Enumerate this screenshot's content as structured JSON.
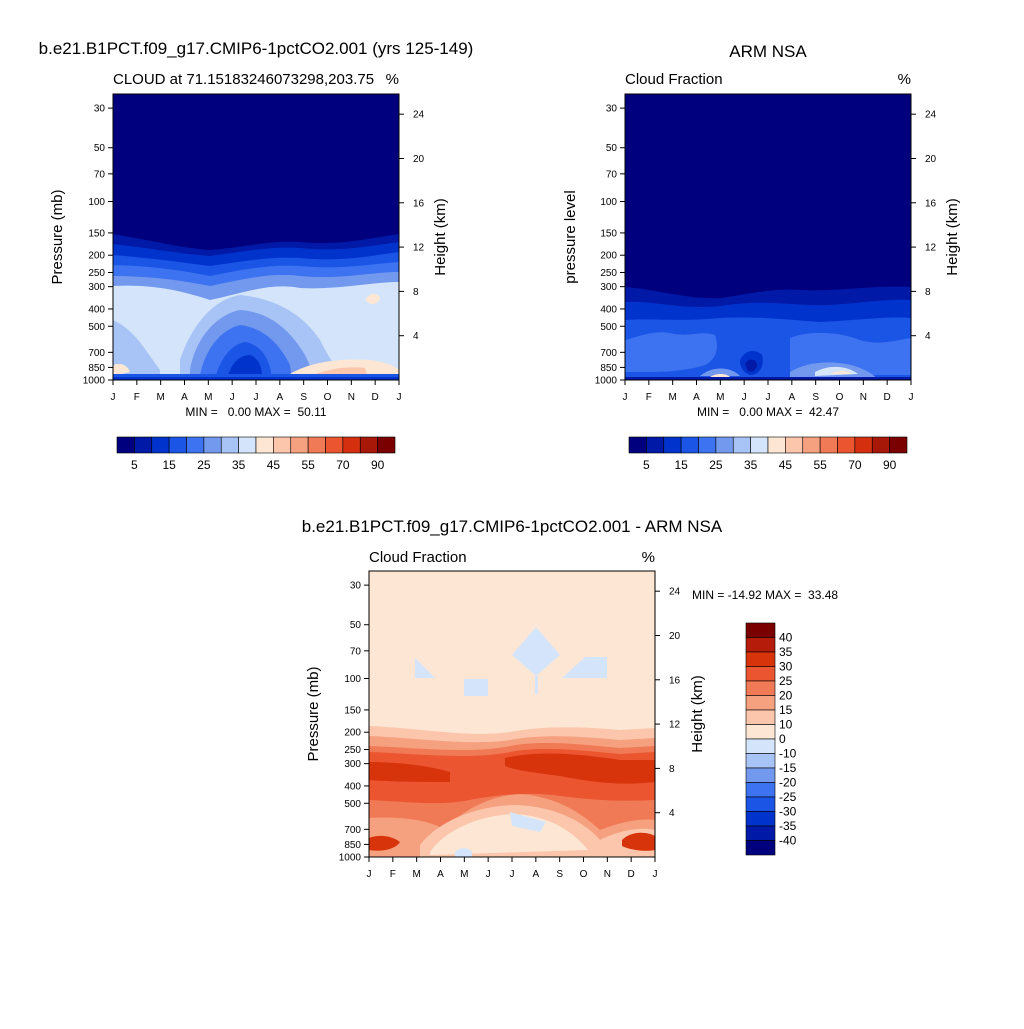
{
  "page": {
    "panels": [
      {
        "title": "b.e21.B1PCT.f09_g17.CMIP6-1pctCO2.001 (yrs 125-149)",
        "left_label": "CLOUD at 71.15183246073298,203.75",
        "right_label": "%",
        "ylabel_left": "Pressure (mb)",
        "ylabel_right": "Height (km)",
        "stats": "MIN =   0.00 MAX =  50.11"
      },
      {
        "title": "ARM NSA",
        "left_label": "Cloud Fraction",
        "right_label": "%",
        "ylabel_left": "pressure level",
        "ylabel_right": "Height (km)",
        "stats": "MIN =   0.00 MAX =  42.47"
      },
      {
        "title": "b.e21.B1PCT.f09_g17.CMIP6-1pctCO2.001 - ARM NSA",
        "left_label": "Cloud Fraction",
        "right_label": "%",
        "ylabel_left": "Pressure (mb)",
        "ylabel_right": "Height (km)",
        "stats": "MIN = -14.92 MAX =  33.48"
      }
    ]
  },
  "chart_data": [
    {
      "type": "heatmap",
      "title": "b.e21.B1PCT.f09_g17.CMIP6-1pctCO2.001 (yrs 125-149)",
      "x_ticks": [
        "J",
        "F",
        "M",
        "A",
        "M",
        "J",
        "J",
        "A",
        "S",
        "O",
        "N",
        "D",
        "J"
      ],
      "y_ticks": [
        "30",
        "50",
        "70",
        "100",
        "150",
        "200",
        "250",
        "300",
        "400",
        "500",
        "700",
        "850",
        "1000"
      ],
      "y_tick_values": [
        30,
        50,
        70,
        100,
        150,
        200,
        250,
        300,
        400,
        500,
        700,
        850,
        1000
      ],
      "y_ticks_right": [
        "24",
        "20",
        "16",
        "12",
        "8",
        "4"
      ],
      "y_right_values_km": [
        24,
        20,
        16,
        12,
        8,
        4
      ],
      "ylim": [
        1000,
        25
      ],
      "colorbar_labels": [
        "5",
        "15",
        "25",
        "35",
        "45",
        "55",
        "70",
        "90"
      ],
      "min": 0.0,
      "max": 50.11
    },
    {
      "type": "heatmap",
      "title": "ARM NSA",
      "x_ticks": [
        "J",
        "F",
        "M",
        "A",
        "M",
        "J",
        "J",
        "A",
        "S",
        "O",
        "N",
        "D",
        "J"
      ],
      "y_ticks": [
        "30",
        "50",
        "70",
        "100",
        "150",
        "200",
        "250",
        "300",
        "400",
        "500",
        "700",
        "850",
        "1000"
      ],
      "y_tick_values": [
        30,
        50,
        70,
        100,
        150,
        200,
        250,
        300,
        400,
        500,
        700,
        850,
        1000
      ],
      "y_ticks_right": [
        "24",
        "20",
        "16",
        "12",
        "8",
        "4"
      ],
      "y_right_values_km": [
        24,
        20,
        16,
        12,
        8,
        4
      ],
      "ylim": [
        1000,
        25
      ],
      "colorbar_labels": [
        "5",
        "15",
        "25",
        "35",
        "45",
        "55",
        "70",
        "90"
      ],
      "min": 0.0,
      "max": 42.47
    },
    {
      "type": "heatmap",
      "title": "b.e21.B1PCT.f09_g17.CMIP6-1pctCO2.001 - ARM NSA",
      "x_ticks": [
        "J",
        "F",
        "M",
        "A",
        "M",
        "J",
        "J",
        "A",
        "S",
        "O",
        "N",
        "D",
        "J"
      ],
      "y_ticks": [
        "30",
        "50",
        "70",
        "100",
        "150",
        "200",
        "250",
        "300",
        "400",
        "500",
        "700",
        "850",
        "1000"
      ],
      "y_tick_values": [
        30,
        50,
        70,
        100,
        150,
        200,
        250,
        300,
        400,
        500,
        700,
        850,
        1000
      ],
      "y_ticks_right": [
        "24",
        "20",
        "16",
        "12",
        "8",
        "4"
      ],
      "y_right_values_km": [
        24,
        20,
        16,
        12,
        8,
        4
      ],
      "ylim": [
        1000,
        25
      ],
      "colorbar_labels": [
        "40",
        "35",
        "30",
        "25",
        "20",
        "15",
        "10",
        "0",
        "-10",
        "-15",
        "-20",
        "-25",
        "-30",
        "-35",
        "-40"
      ],
      "min": -14.92,
      "max": 33.48
    }
  ],
  "colors": {
    "seq_palette": [
      "#00007f",
      "#0019a6",
      "#0033cc",
      "#1a55e6",
      "#3d72f0",
      "#7399ee",
      "#a8c3f5",
      "#d4e5fb",
      "#fde7d4",
      "#fbc6ac",
      "#f5a07f",
      "#f07a55",
      "#eb5530",
      "#d42f0f",
      "#a81808",
      "#7a0000"
    ],
    "diff_palette": [
      "#7a0000",
      "#b51d0a",
      "#d8340c",
      "#eb5530",
      "#f07a55",
      "#f5a07f",
      "#fbc6ac",
      "#fde7d4",
      "#d4e5fb",
      "#a8c3f5",
      "#7399ee",
      "#3d72f0",
      "#1a55e6",
      "#0033cc",
      "#0019a6",
      "#00007f"
    ]
  }
}
